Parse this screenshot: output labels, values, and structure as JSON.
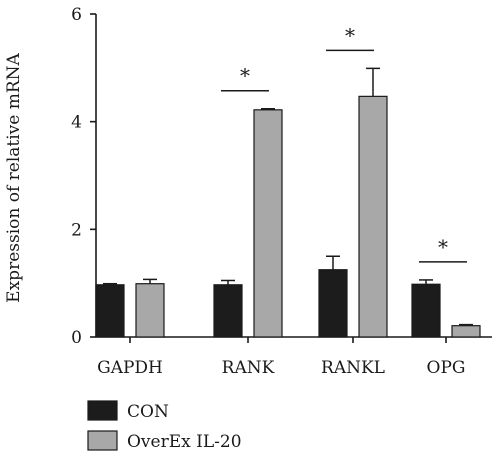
{
  "chart_data": {
    "type": "bar",
    "ylabel": "Expression of relative mRNA",
    "xlabel": "",
    "ylim": [
      0,
      6
    ],
    "yticks": [
      0,
      2,
      4,
      6
    ],
    "categories": [
      "GAPDH",
      "RANK",
      "RANKL",
      "OPG"
    ],
    "series": [
      {
        "name": "CON",
        "color": "#1c1c1c",
        "values": [
          0.97,
          0.97,
          1.25,
          0.98
        ],
        "errors": [
          0.02,
          0.08,
          0.25,
          0.08
        ]
      },
      {
        "name": "OverEx IL-20",
        "color": "#a8a8a8",
        "values": [
          0.99,
          4.22,
          4.47,
          0.21
        ],
        "errors": [
          0.08,
          0.02,
          0.52,
          0.02
        ]
      }
    ],
    "significance": [
      {
        "category": "RANK",
        "label": "*"
      },
      {
        "category": "RANKL",
        "label": "*"
      },
      {
        "category": "OPG",
        "label": "*"
      }
    ],
    "legend_position": "bottom-left"
  }
}
